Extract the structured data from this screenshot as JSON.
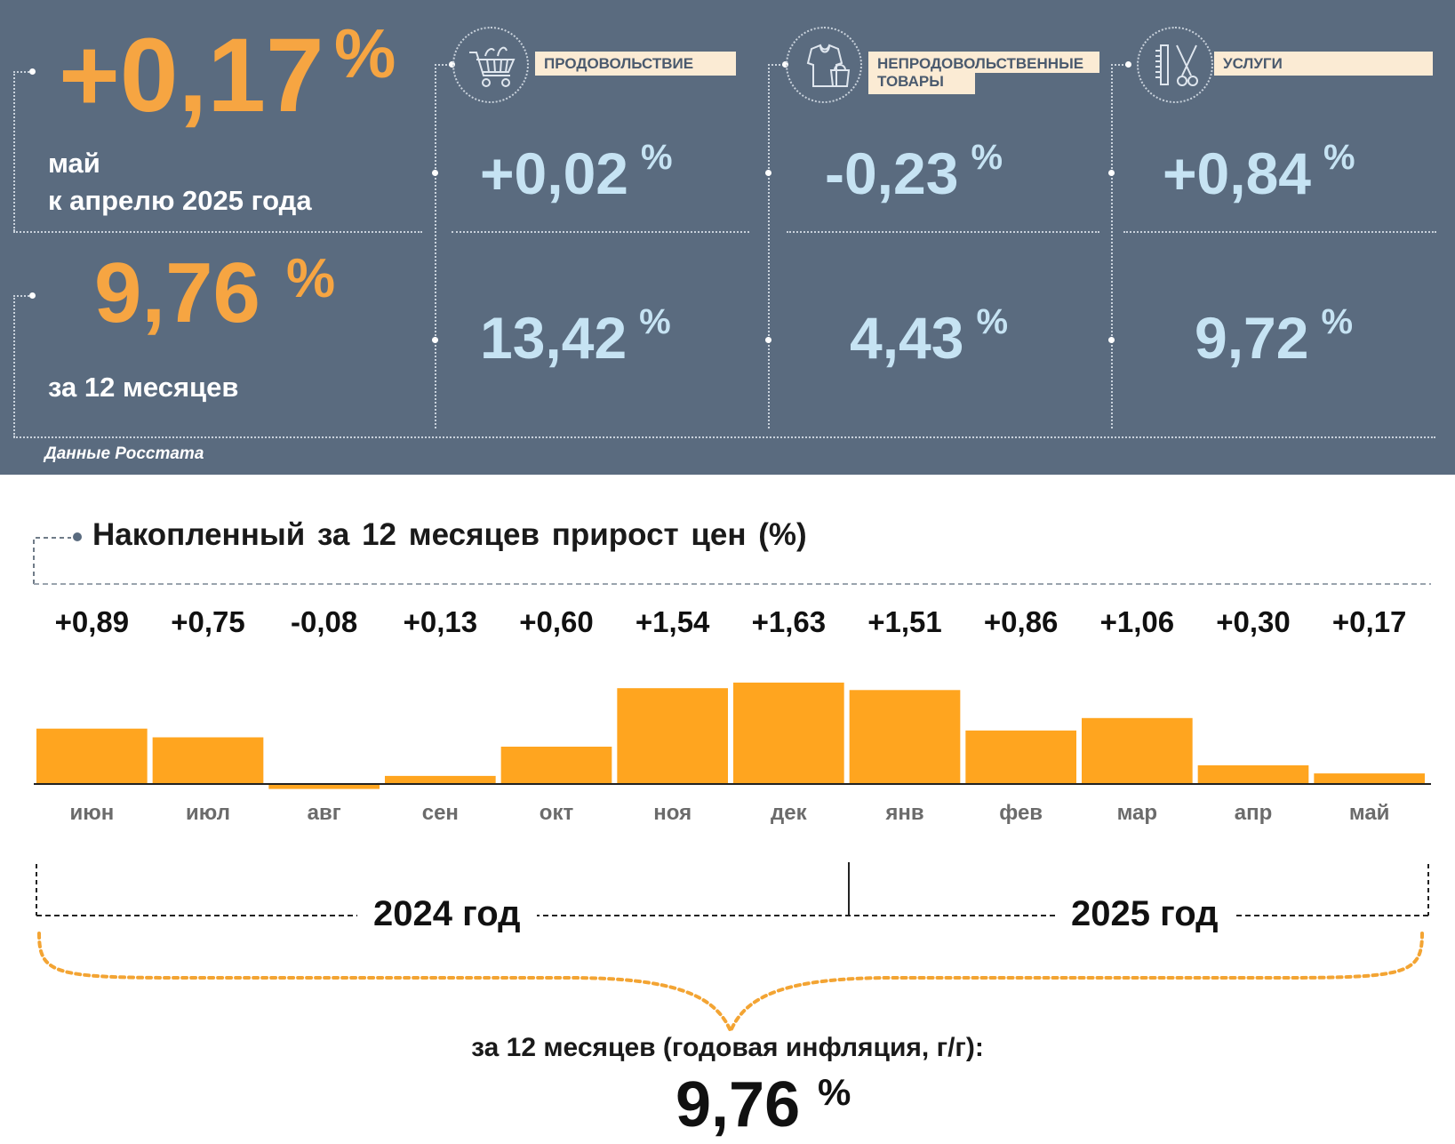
{
  "panel": {
    "monthly": {
      "value": "+0,17",
      "unit": "%",
      "line1": "май",
      "line2": "к апрелю 2025 года"
    },
    "annual": {
      "value": "9,76",
      "unit": "%",
      "label": "за 12 месяцев"
    },
    "categories": [
      {
        "label": "ПРОДОВОЛЬСТВИЕ",
        "icon": "shopping-cart-icon",
        "monthly": "+0,02",
        "annual": "13,42",
        "unit": "%"
      },
      {
        "label_line1": "НЕПРОДОВОЛЬСТВЕННЫЕ",
        "label_line2": "ТОВАРЫ",
        "icon": "clothing-icon",
        "monthly": "-0,23",
        "annual": "4,43",
        "unit": "%"
      },
      {
        "label": "УСЛУГИ",
        "icon": "comb-scissors-icon",
        "monthly": "+0,84",
        "annual": "9,72",
        "unit": "%"
      }
    ],
    "source": "Данные Росстата",
    "colors": {
      "background": "#5a6b7f",
      "orange": "#f6a542",
      "blue_value": "#c6e3f3",
      "label_bg": "#fbebd4"
    }
  },
  "chart_data": {
    "type": "bar",
    "title": "Накопленный за 12 месяцев прирост цен (%)",
    "categories": [
      "июн",
      "июл",
      "авг",
      "сен",
      "окт",
      "ноя",
      "дек",
      "янв",
      "фев",
      "мар",
      "апр",
      "май"
    ],
    "values": [
      0.89,
      0.75,
      -0.08,
      0.13,
      0.6,
      1.54,
      1.63,
      1.51,
      0.86,
      1.06,
      0.3,
      0.17
    ],
    "value_labels": [
      "+0,89",
      "+0,75",
      "-0,08",
      "+0,13",
      "+0,60",
      "+1,54",
      "+1,63",
      "+1,51",
      "+0,86",
      "+1,06",
      "+0,30",
      "+0,17"
    ],
    "years": [
      "2024 год",
      "2025 год"
    ],
    "bar_color": "#ffa51f",
    "grid": false
  },
  "summary": {
    "caption": "за 12 месяцев (годовая инфляция, г/г):",
    "value": "9,76",
    "unit": "%"
  }
}
